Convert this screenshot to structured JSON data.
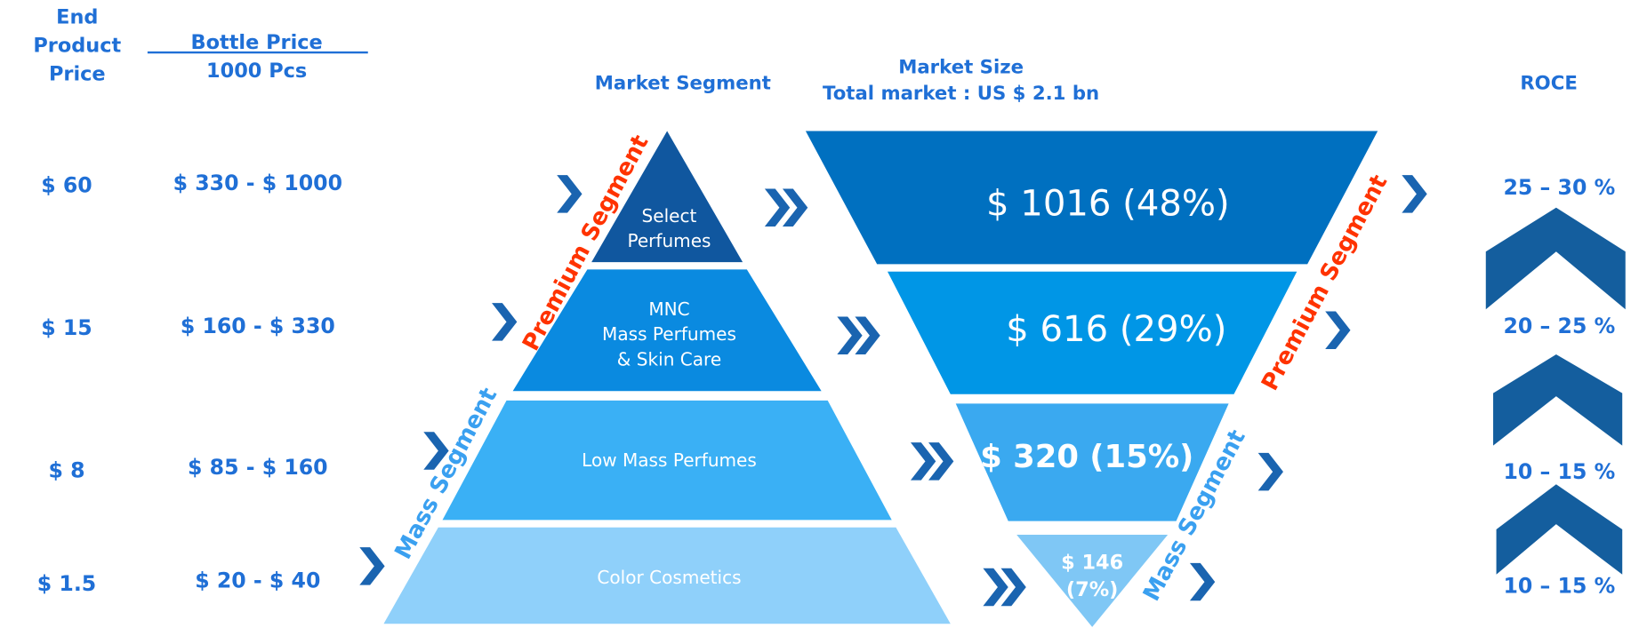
{
  "headers": {
    "end_price": [
      "End",
      "Product",
      "Price"
    ],
    "bottle_price": [
      "Bottle Price",
      "1000 Pcs"
    ],
    "segment": "Market Segment",
    "market_size": [
      "Market Size",
      "Total market : US $ 2.1 bn"
    ],
    "roce": "ROCE"
  },
  "rows": [
    {
      "end_price": "$ 60",
      "bottle_price": "$ 330 - $ 1000",
      "segment": [
        "Select",
        "Perfumes"
      ],
      "market_size": [
        "$ 1016 (48%)"
      ],
      "roce": "25 – 30 %"
    },
    {
      "end_price": "$ 15",
      "bottle_price": "$ 160 - $ 330",
      "segment": [
        "MNC",
        "Mass Perfumes",
        "& Skin Care"
      ],
      "market_size": [
        "$ 616 (29%)"
      ],
      "roce": "20 – 25 %"
    },
    {
      "end_price": "$ 8",
      "bottle_price": "$ 85 - $ 160",
      "segment": [
        "Low Mass Perfumes"
      ],
      "market_size": [
        "$ 320 (15%)"
      ],
      "roce": "10 – 15 %"
    },
    {
      "end_price": "$ 1.5",
      "bottle_price": "$ 20 - $ 40",
      "segment": [
        "Color Cosmetics"
      ],
      "market_size": [
        "$ 146",
        "(7%)"
      ],
      "roce": "10 – 15 %"
    }
  ],
  "labels": {
    "premium_left": "Premium Segment",
    "mass_left": "Mass Segment",
    "premium_right": "Premium Segment",
    "mass_right": "Mass Segment"
  }
}
